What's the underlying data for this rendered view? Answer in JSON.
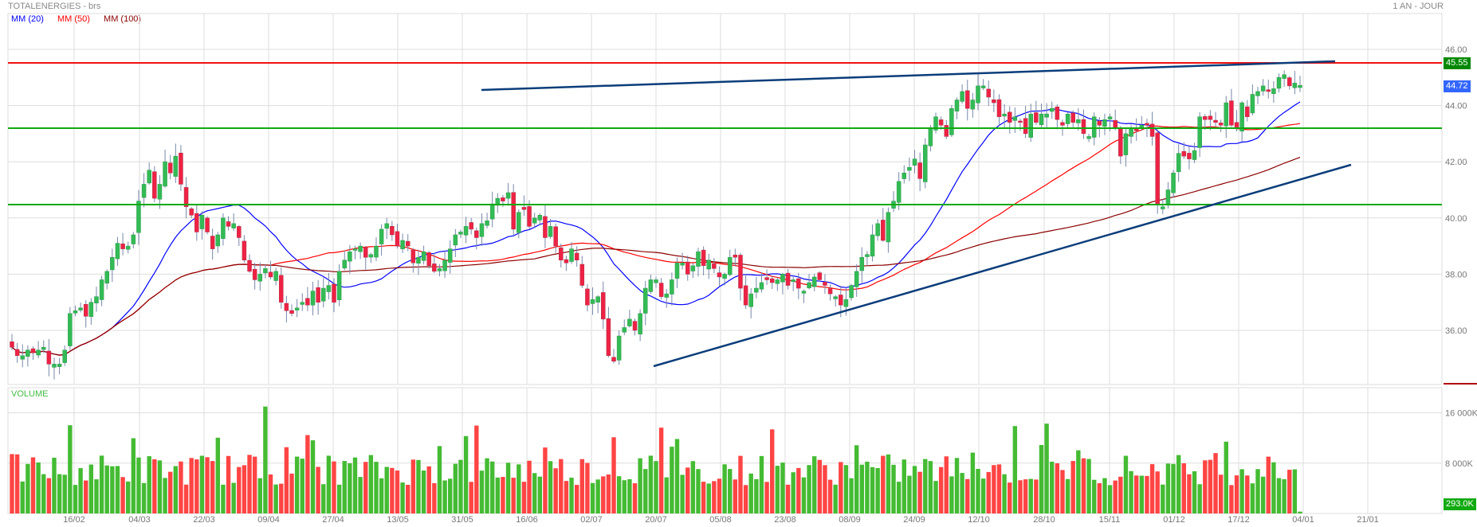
{
  "header": {
    "title": "TOTALENERGIES - brs",
    "period": "1 AN - JOUR"
  },
  "legend": {
    "items": [
      {
        "label": "MM (20)",
        "color": "#0000ff"
      },
      {
        "label": "MM (50)",
        "color": "#ff0000"
      },
      {
        "label": "MM (100)",
        "color": "#8b0000"
      }
    ]
  },
  "volume_panel": {
    "label": "VOLUME",
    "ticks": [
      "16 000K",
      "8 000K"
    ],
    "last_value": "293.0K"
  },
  "price_tags": {
    "resistance": "45.55",
    "last": "44.72"
  },
  "colors": {
    "up": "#33bb55",
    "down": "#ee2244",
    "vol_up": "#44bb33",
    "vol_down": "#ff4444",
    "resistance_line": "#ee1111",
    "support_lines": "#11aa11",
    "trendlines": "#0a3d7a",
    "grid": "#dddddd"
  },
  "chart_data": {
    "type": "candlestick",
    "title": "TOTALENERGIES - brs",
    "subtitle": "1 AN - JOUR",
    "x_tick_labels": [
      "16/02",
      "04/03",
      "22/03",
      "09/04",
      "27/04",
      "13/05",
      "31/05",
      "16/06",
      "02/07",
      "20/07",
      "05/08",
      "23/08",
      "08/09",
      "24/09",
      "12/10",
      "28/10",
      "15/11",
      "01/12",
      "17/12",
      "04/01",
      "21/01"
    ],
    "y_tick_labels": [
      "46.00",
      "44.00",
      "42.00",
      "40.00",
      "38.00",
      "36.00"
    ],
    "ylim": [
      34.2,
      47.5
    ],
    "horizontal_lines": [
      {
        "value": 45.55,
        "color": "red",
        "label": "45.55"
      },
      {
        "value": 43.2,
        "color": "green"
      },
      {
        "value": 40.5,
        "color": "green"
      }
    ],
    "trendlines": [
      {
        "from": {
          "x": "31/05",
          "y": 44.7
        },
        "to": {
          "x": "02/01",
          "y": 45.6
        }
      },
      {
        "from": {
          "x": "20/07",
          "y": 34.7
        },
        "to": {
          "x": "02/01",
          "y": 41.9
        }
      }
    ],
    "legend": [
      "MM (20)",
      "MM (50)",
      "MM (100)"
    ],
    "last_price": 44.72,
    "closes": [
      35.4,
      35.1,
      35.1,
      35.3,
      35.2,
      35.3,
      35.4,
      34.8,
      34.8,
      34.8,
      35.3,
      36.6,
      36.7,
      36.8,
      36.5,
      37.0,
      37.2,
      37.8,
      38.1,
      38.6,
      39.1,
      38.9,
      39.0,
      39.4,
      40.6,
      41.2,
      41.7,
      40.7,
      41.2,
      42.0,
      41.6,
      42.2,
      41.2,
      40.4,
      40.1,
      39.5,
      40.1,
      39.5,
      38.9,
      39.4,
      40.0,
      39.7,
      39.8,
      39.3,
      38.5,
      38.1,
      37.8,
      38.0,
      38.2,
      37.9,
      38.1,
      37.0,
      36.7,
      36.6,
      36.8,
      37.0,
      36.9,
      37.4,
      37.0,
      37.5,
      37.6,
      37.0,
      38.1,
      38.5,
      38.8,
      38.9,
      39.0,
      38.6,
      38.7,
      39.0,
      39.6,
      39.8,
      39.4,
      39.0,
      39.2,
      39.0,
      38.4,
      38.6,
      38.8,
      38.3,
      38.1,
      38.2,
      38.5,
      38.9,
      39.4,
      39.5,
      39.7,
      39.6,
      39.3,
      39.8,
      39.9,
      40.5,
      40.7,
      40.6,
      40.9,
      39.6,
      40.2,
      40.3,
      39.7,
      40.0,
      40.1,
      39.3,
      39.7,
      39.0,
      38.5,
      38.4,
      38.9,
      38.5,
      37.6,
      36.9,
      37.1,
      37.2,
      36.4,
      35.1,
      34.9,
      35.8,
      36.1,
      36.4,
      36.0,
      36.6,
      37.5,
      37.8,
      37.8,
      37.2,
      37.3,
      37.8,
      38.4,
      38.4,
      38.0,
      38.3,
      38.8,
      38.3,
      38.5,
      38.2,
      37.9,
      38.0,
      38.6,
      38.6,
      37.5,
      36.9,
      37.3,
      37.5,
      37.7,
      37.8,
      37.7,
      37.8,
      38.0,
      37.6,
      37.8,
      37.5,
      37.4,
      37.7,
      37.9,
      37.8,
      37.6,
      37.3,
      37.2,
      36.9,
      37.1,
      37.6,
      38.1,
      38.6,
      38.7,
      39.4,
      39.8,
      39.2,
      40.2,
      40.6,
      41.3,
      41.6,
      41.8,
      42.1,
      41.4,
      42.6,
      43.2,
      43.6,
      43.3,
      42.9,
      43.9,
      44.2,
      44.5,
      43.9,
      44.2,
      44.7,
      44.7,
      44.3,
      44.1,
      43.6,
      43.7,
      43.4,
      43.6,
      43.4,
      43.0,
      43.7,
      43.4,
      43.7,
      43.7,
      43.9,
      43.5,
      43.3,
      43.7,
      43.4,
      43.5,
      43.0,
      42.9,
      43.6,
      43.3,
      43.5,
      43.6,
      43.2,
      42.2,
      43.0,
      43.2,
      43.1,
      43.3,
      43.3,
      42.9,
      40.5,
      40.4,
      41.0,
      41.6,
      42.3,
      42.2,
      42.1,
      42.4,
      43.6,
      43.5,
      43.5,
      43.4,
      43.3,
      44.1,
      43.3,
      43.2,
      44.1,
      43.6,
      44.4,
      44.5,
      44.7,
      44.5,
      44.6,
      45.0,
      45.1,
      44.7,
      44.8,
      44.72
    ],
    "volume_ylim": [
      0,
      20000
    ],
    "volume_ticks": [
      16000,
      8000
    ],
    "volume_unit": "K",
    "last_volume": "293.0K"
  }
}
